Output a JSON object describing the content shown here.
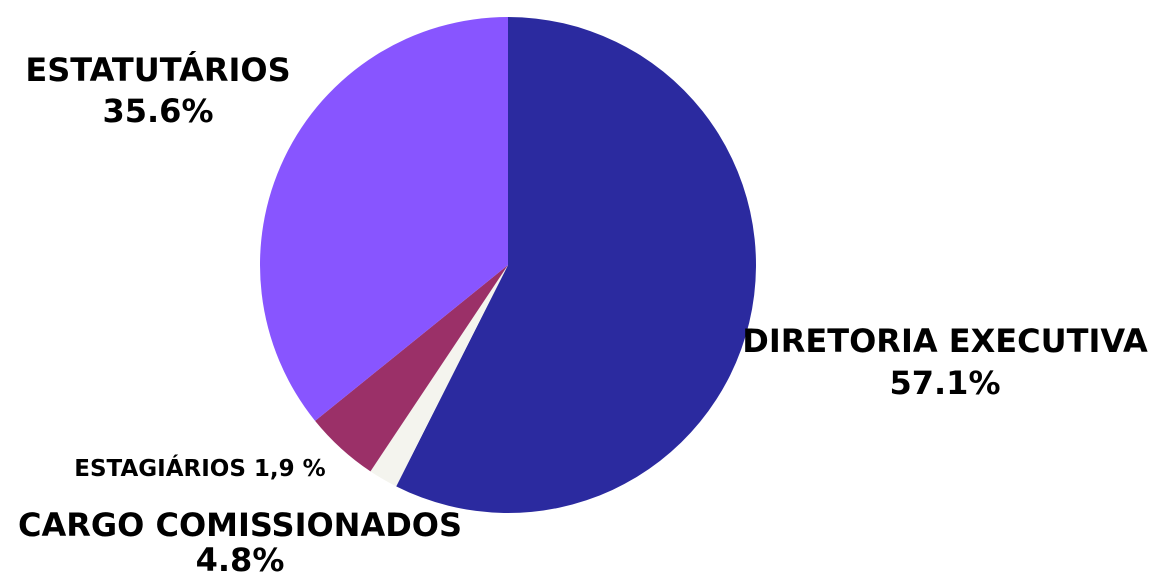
{
  "chart_data": {
    "type": "pie",
    "categories": [
      "DIRETORIA EXECUTIVA",
      "ESTAGIÁRIOS",
      "CARGO COMISSIONADOS",
      "ESTATUTÁRIOS"
    ],
    "values": [
      57.1,
      1.9,
      4.8,
      35.6
    ],
    "value_labels": [
      "57.1%",
      "1,9 %",
      "4.8%",
      "35.6%"
    ],
    "colors": [
      "#2b2a9f",
      "#f4f4ee",
      "#9b3068",
      "#8855ff"
    ]
  }
}
